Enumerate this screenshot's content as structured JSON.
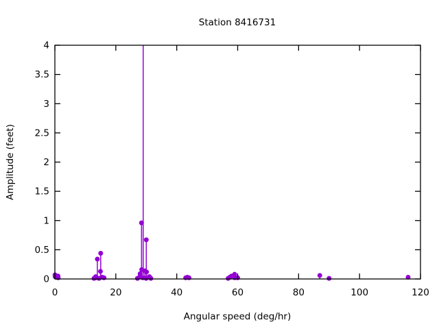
{
  "title": "Station 8416731",
  "colors": {
    "series": "#9400d3",
    "axis": "#000000",
    "background": "#ffffff"
  },
  "chart_data": {
    "type": "stem",
    "title": "Station 8416731",
    "xlabel": "Angular speed (deg/hr)",
    "ylabel": "Amplitude (feet)",
    "xlim": [
      0,
      120
    ],
    "ylim": [
      0,
      4
    ],
    "xticks": {
      "values": [
        0,
        20,
        40,
        60,
        80,
        100,
        120
      ],
      "labels": [
        "0",
        "20",
        "40",
        "60",
        "80",
        "100",
        "120"
      ]
    },
    "yticks": {
      "values": [
        0,
        0.5,
        1,
        1.5,
        2,
        2.5,
        3,
        3.5,
        4
      ],
      "labels": [
        "0",
        "0.5",
        "1",
        "1.5",
        "2",
        "2.5",
        "3",
        "3.5",
        "4"
      ]
    },
    "grid": false,
    "legend": false,
    "marker": "filled-circle",
    "series_color": "#9400d3",
    "note": "stem at x=28.98 exceeds ylim and is clipped at the top border",
    "points": [
      [
        0.04,
        0.07
      ],
      [
        0.08,
        0.04
      ],
      [
        0.54,
        0.03
      ],
      [
        1.02,
        0.05
      ],
      [
        1.1,
        0.02
      ],
      [
        12.85,
        0.01
      ],
      [
        13.4,
        0.04
      ],
      [
        13.47,
        0.02
      ],
      [
        13.94,
        0.34
      ],
      [
        14.5,
        0.01
      ],
      [
        14.96,
        0.13
      ],
      [
        15.04,
        0.44
      ],
      [
        15.58,
        0.03
      ],
      [
        16.14,
        0.02
      ],
      [
        27.1,
        0.01
      ],
      [
        27.9,
        0.04
      ],
      [
        27.97,
        0.09
      ],
      [
        28.44,
        0.96
      ],
      [
        28.51,
        0.16
      ],
      [
        28.9,
        0.02
      ],
      [
        28.98,
        4.5
      ],
      [
        29.53,
        0.14
      ],
      [
        29.96,
        0.01
      ],
      [
        30.0,
        0.67
      ],
      [
        30.08,
        0.12
      ],
      [
        31.02,
        0.04
      ],
      [
        31.5,
        0.01
      ],
      [
        42.93,
        0.02
      ],
      [
        43.48,
        0.03
      ],
      [
        44.03,
        0.02
      ],
      [
        56.87,
        0.01
      ],
      [
        57.42,
        0.03
      ],
      [
        57.97,
        0.05
      ],
      [
        58.98,
        0.08
      ],
      [
        59.05,
        0.02
      ],
      [
        60.0,
        0.02
      ],
      [
        86.95,
        0.06
      ],
      [
        90.0,
        0.01
      ],
      [
        115.94,
        0.03
      ]
    ]
  }
}
